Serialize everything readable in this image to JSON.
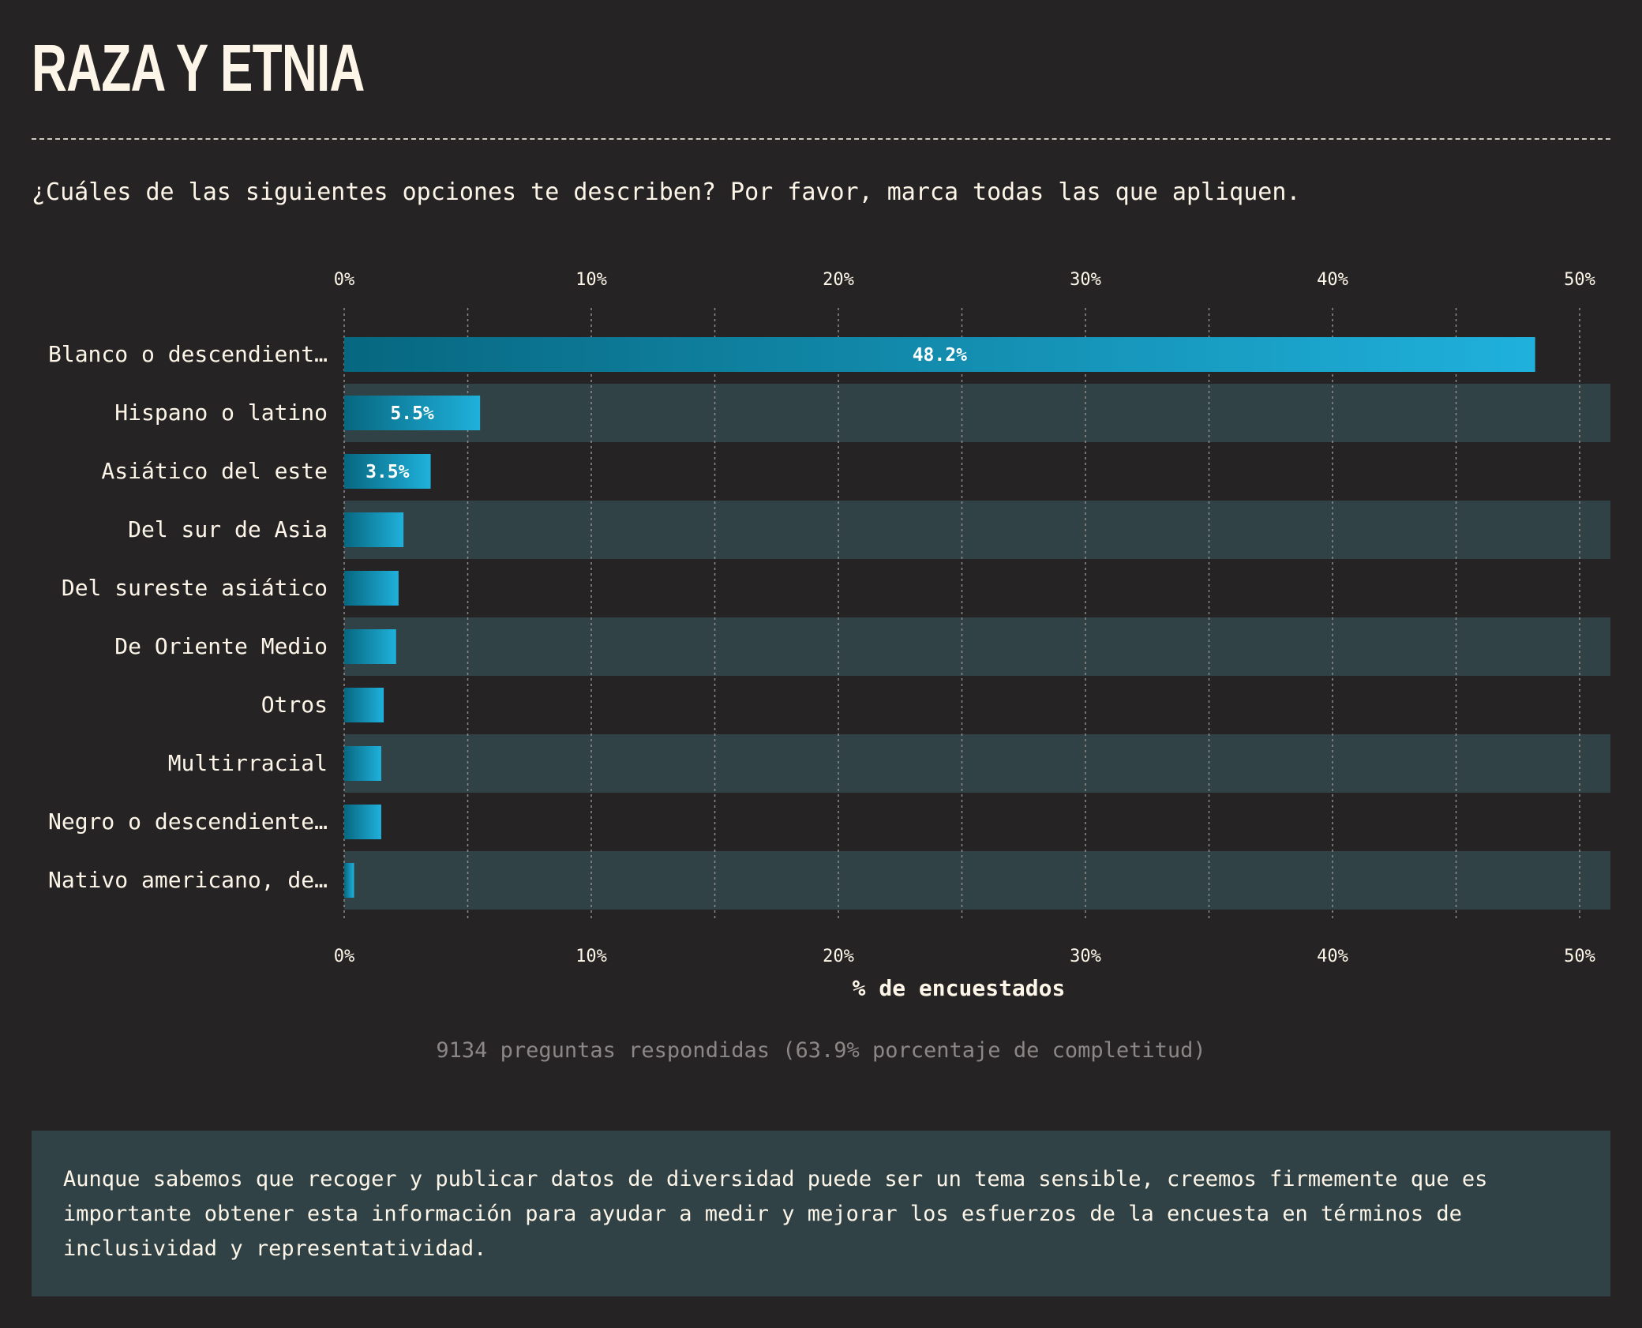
{
  "title": "RAZA Y ETNIA",
  "question": "¿Cuáles de las siguientes opciones te describen? Por favor, marca todas las que apliquen.",
  "colors": {
    "background": "#262325",
    "band": "#304246",
    "bar_start": "#076780",
    "bar_end": "#1fb1dc",
    "text": "#fdf6e8",
    "muted": "#8a8786"
  },
  "chart_data": {
    "type": "bar",
    "orientation": "horizontal",
    "categories": [
      "Blanco o descendient…",
      "Hispano o latino",
      "Asiático del este",
      "Del sur de Asia",
      "Del sureste asiático",
      "De Oriente Medio",
      "Otros",
      "Multirracial",
      "Negro o descendiente…",
      "Nativo americano, de…"
    ],
    "values": [
      48.2,
      5.5,
      3.5,
      2.4,
      2.2,
      2.1,
      1.6,
      1.5,
      1.5,
      0.4
    ],
    "value_labels": [
      "48.2%",
      "5.5%",
      "3.5%",
      "",
      "",
      "",
      "",
      "",
      "",
      ""
    ],
    "xlim": [
      0,
      50
    ],
    "ticks": [
      0,
      10,
      20,
      30,
      40,
      50
    ],
    "tick_labels": [
      "0%",
      "10%",
      "20%",
      "30%",
      "40%",
      "50%"
    ],
    "minor_grid": [
      5,
      15,
      25,
      35,
      45
    ],
    "xlabel": "% de encuestados",
    "grid": true
  },
  "footnote": "9134 preguntas respondidas (63.9% porcentaje de completitud)",
  "info": "Aunque sabemos que recoger y publicar datos de diversidad puede ser un tema sensible, creemos firmemente que es importante obtener esta información para ayudar a medir y mejorar los esfuerzos de la encuesta en términos de inclusividad y representatividad."
}
